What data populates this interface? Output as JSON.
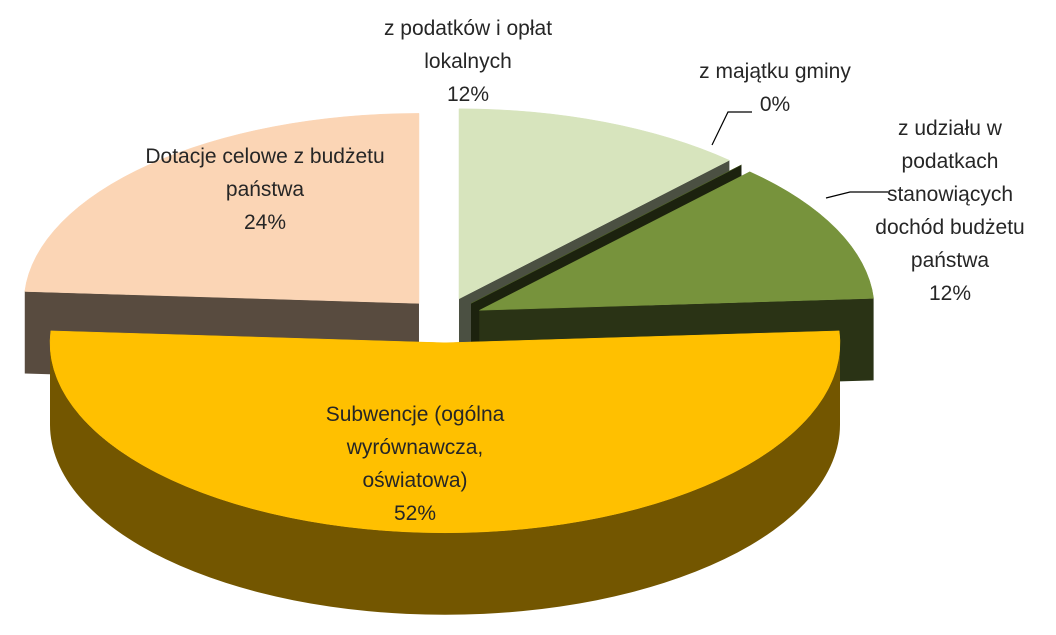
{
  "chart_data": {
    "type": "pie",
    "categories": [
      "z podatków i opłat lokalnych",
      "z majątku gminy",
      "z udziału w podatkach stanowiących dochód budżetu państwa",
      "Subwencje (ogólna wyrównawcza, oświatowa)",
      "Dotacje celowe z budżetu państwa"
    ],
    "values": [
      12,
      0,
      12,
      52,
      24
    ],
    "value_labels": [
      "12%",
      "0%",
      "12%",
      "52%",
      "24%"
    ],
    "colors": [
      "#d7e4bd",
      "#4f6228",
      "#77933c",
      "#ffc000",
      "#fbd5b5"
    ]
  }
}
